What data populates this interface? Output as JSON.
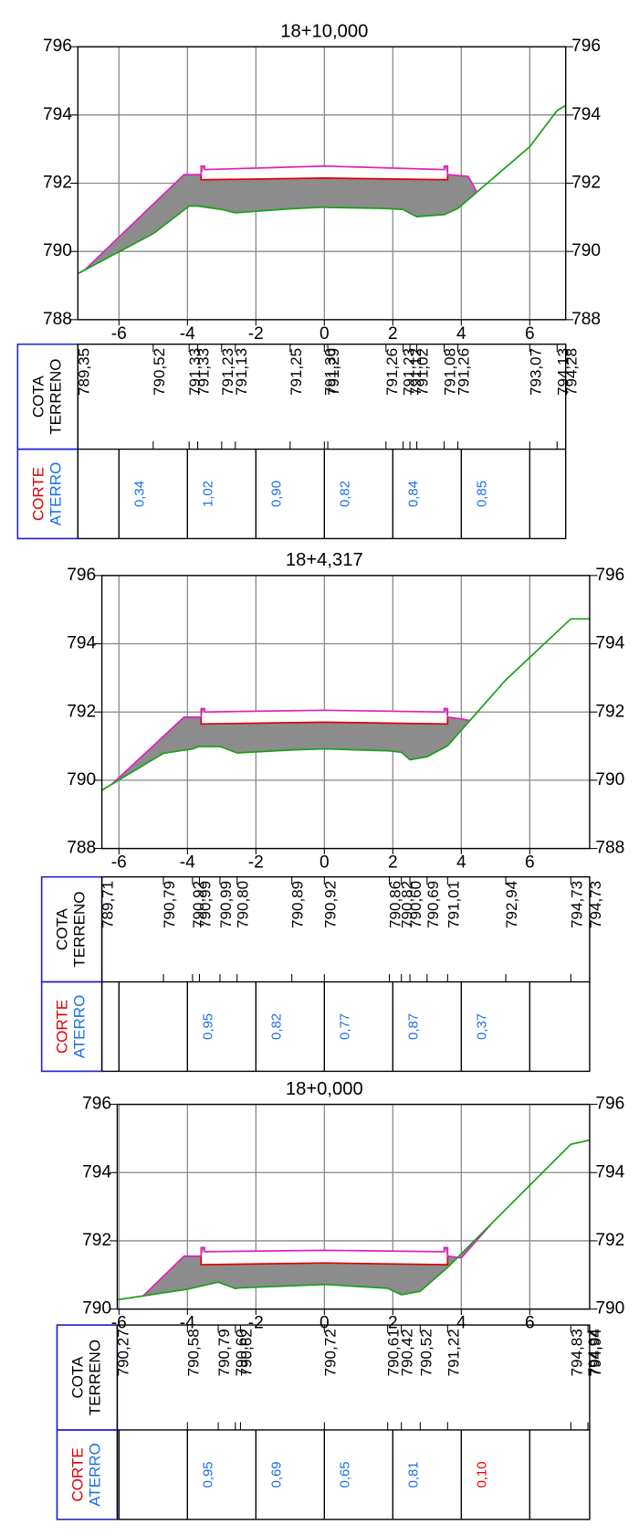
{
  "chart_data": [
    {
      "type": "line",
      "title": "18+10,000",
      "xlim": [
        -7.2,
        7.05
      ],
      "ylim": [
        788,
        796
      ],
      "xticks": [
        -6,
        -4,
        -2,
        0,
        2,
        4,
        6
      ],
      "yticks": [
        788,
        790,
        792,
        794,
        796
      ],
      "grid": true,
      "series": [
        {
          "color": "#1aa01a",
          "x": [
            -7.2,
            -5.0,
            -3.95,
            -3.7,
            -3.0,
            -2.6,
            -1.0,
            0,
            0.1,
            1.8,
            2.3,
            2.5,
            2.7,
            3.5,
            3.9,
            6.0,
            6.8,
            7.05
          ],
          "values": [
            789.35,
            790.52,
            791.33,
            791.33,
            791.23,
            791.13,
            791.25,
            791.3,
            791.29,
            791.26,
            791.23,
            791.12,
            791.02,
            791.08,
            791.26,
            793.07,
            794.13,
            794.28
          ],
          "value_labels": [
            "789,35",
            "790,52",
            "791,33",
            "791,33",
            "791,23",
            "791,13",
            "791,25",
            "791,30",
            "791,29",
            "791,26",
            "791,23",
            "791,12",
            "791,02",
            "791,08",
            "791,26",
            "793,07",
            "794,13",
            "794,28"
          ]
        },
        {
          "color": "#e020c0",
          "x": [
            -7.0,
            -4.1,
            -3.6,
            -3.6,
            -3.5,
            -3.5,
            0,
            3.5,
            3.5,
            3.6,
            3.6,
            4.2,
            4.45
          ],
          "values": [
            789.46,
            792.25,
            792.25,
            792.5,
            792.5,
            792.4,
            792.5,
            792.4,
            792.5,
            792.5,
            792.25,
            792.2,
            791.75
          ]
        },
        {
          "color": "#e00000",
          "x": [
            -3.6,
            -3.6,
            0,
            3.6,
            3.6
          ],
          "values": [
            792.25,
            792.1,
            792.15,
            792.1,
            792.25
          ]
        }
      ],
      "table": {
        "row_labels": [
          "COTA",
          "TERRENO"
        ],
        "area_row_labels": [
          "CORTE",
          "ATERRO"
        ],
        "area_row_colors": [
          "#e00000",
          "#1a6fe8"
        ],
        "areas": [
          "0,34",
          "1,02",
          "0,90",
          "0,82",
          "0,84",
          "0,85"
        ],
        "area_colors": [
          "#1a6fe8",
          "#1a6fe8",
          "#1a6fe8",
          "#1a6fe8",
          "#1a6fe8",
          "#1a6fe8"
        ]
      }
    },
    {
      "type": "line",
      "title": "18+4,317",
      "xlim": [
        -6.5,
        7.75
      ],
      "ylim": [
        788,
        796
      ],
      "xticks": [
        -6,
        -4,
        -2,
        0,
        2,
        4,
        6
      ],
      "yticks": [
        788,
        790,
        792,
        794,
        796
      ],
      "grid": true,
      "series": [
        {
          "color": "#1aa01a",
          "x": [
            -6.5,
            -4.7,
            -3.85,
            -3.65,
            -3.05,
            -2.55,
            -0.95,
            0,
            1.9,
            2.25,
            2.5,
            3.0,
            3.6,
            5.3,
            7.2,
            7.75
          ],
          "values": [
            789.71,
            790.79,
            790.92,
            790.99,
            790.99,
            790.8,
            790.89,
            790.92,
            790.86,
            790.82,
            790.6,
            790.69,
            791.01,
            792.94,
            794.73,
            794.73
          ],
          "value_labels": [
            "789,71",
            "790,79",
            "790,92",
            "790,99",
            "790,99",
            "790,80",
            "790,89",
            "790,92",
            "790,86",
            "790,82",
            "790,60",
            "790,69",
            "791,01",
            "792,94",
            "794,73",
            "794,73"
          ]
        },
        {
          "color": "#e020c0",
          "x": [
            -6.2,
            -4.1,
            -3.6,
            -3.6,
            -3.5,
            -3.5,
            0,
            3.5,
            3.5,
            3.6,
            3.6,
            4.0,
            4.25
          ],
          "values": [
            789.89,
            791.85,
            791.85,
            792.1,
            792.1,
            792.0,
            792.05,
            792.0,
            792.1,
            792.1,
            791.85,
            791.8,
            791.75
          ]
        },
        {
          "color": "#e00000",
          "x": [
            -3.6,
            -3.6,
            0,
            3.6,
            3.6
          ],
          "values": [
            791.85,
            791.65,
            791.7,
            791.65,
            791.85
          ]
        }
      ],
      "table": {
        "row_labels": [
          "COTA",
          "TERRENO"
        ],
        "area_row_labels": [
          "CORTE",
          "ATERRO"
        ],
        "area_row_colors": [
          "#e00000",
          "#1a6fe8"
        ],
        "areas": [
          null,
          "0,95",
          "0,82",
          "0,77",
          "0,87",
          "0,37"
        ],
        "area_colors": [
          null,
          "#1a6fe8",
          "#1a6fe8",
          "#1a6fe8",
          "#1a6fe8",
          "#1a6fe8"
        ]
      }
    },
    {
      "type": "line",
      "title": "18+0,000",
      "xlim": [
        -6.05,
        7.75
      ],
      "ylim": [
        790,
        796
      ],
      "xticks": [
        -6,
        -4,
        -2,
        0,
        2,
        4,
        6
      ],
      "yticks": [
        790,
        792,
        794,
        796
      ],
      "grid": true,
      "series": [
        {
          "color": "#1aa01a",
          "x": [
            -6.05,
            -4.0,
            -3.1,
            -2.6,
            -2.45,
            0,
            1.85,
            2.25,
            2.8,
            3.6,
            7.2,
            7.7,
            7.75
          ],
          "values": [
            790.27,
            790.58,
            790.79,
            790.6,
            790.62,
            790.72,
            790.61,
            790.42,
            790.52,
            791.22,
            794.83,
            794.94,
            794.94
          ],
          "value_labels": [
            "790,27",
            "790,58",
            "790,79",
            "790,60",
            "790,62",
            "790,72",
            "790,61",
            "790,42",
            "790,52",
            "791,22",
            "794,83",
            "794,94",
            "794,94"
          ]
        },
        {
          "color": "#e020c0",
          "x": [
            -5.3,
            -4.1,
            -3.6,
            -3.6,
            -3.5,
            -3.5,
            0,
            3.5,
            3.5,
            3.6,
            3.6,
            4.0,
            4.9
          ],
          "values": [
            790.38,
            791.55,
            791.55,
            791.8,
            791.8,
            791.68,
            791.72,
            791.68,
            791.8,
            791.8,
            791.55,
            791.5,
            792.52
          ]
        },
        {
          "color": "#e00000",
          "x": [
            -3.6,
            -3.6,
            0,
            3.6,
            3.6
          ],
          "values": [
            791.55,
            791.3,
            791.35,
            791.3,
            791.55
          ]
        }
      ],
      "table": {
        "row_labels": [
          "COTA",
          "TERRENO"
        ],
        "area_row_labels": [
          "CORTE",
          "ATERRO"
        ],
        "area_row_colors": [
          "#e00000",
          "#1a6fe8"
        ],
        "areas": [
          null,
          "0,95",
          "0,69",
          "0,65",
          "0,81",
          "0,10"
        ],
        "area_colors": [
          null,
          "#1a6fe8",
          "#1a6fe8",
          "#1a6fe8",
          "#1a6fe8",
          "#e00000"
        ]
      }
    }
  ]
}
